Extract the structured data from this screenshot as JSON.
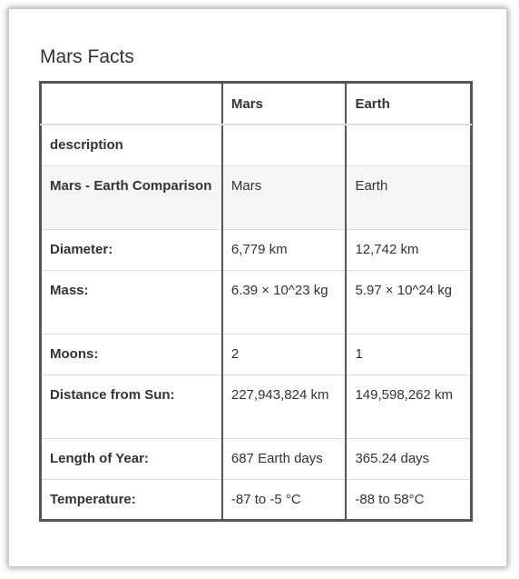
{
  "title": "Mars Facts",
  "headers": [
    "",
    "Mars",
    "Earth"
  ],
  "rows": [
    {
      "label": "description",
      "mars": "",
      "earth": ""
    },
    {
      "label": "Mars - Earth Comparison",
      "mars": "Mars",
      "earth": "Earth"
    },
    {
      "label": "Diameter:",
      "mars": "6,779 km",
      "earth": "12,742 km"
    },
    {
      "label": "Mass:",
      "mars": "6.39 × 10^23 kg",
      "earth": "5.97 × 10^24 kg"
    },
    {
      "label": "Moons:",
      "mars": "2",
      "earth": "1"
    },
    {
      "label": "Distance from Sun:",
      "mars": "227,943,824 km",
      "earth": "149,598,262 km"
    },
    {
      "label": "Length of Year:",
      "mars": "687 Earth days",
      "earth": "365.24 days"
    },
    {
      "label": "Temperature:",
      "mars": "-87 to -5 °C",
      "earth": "-88 to 58°C"
    }
  ]
}
